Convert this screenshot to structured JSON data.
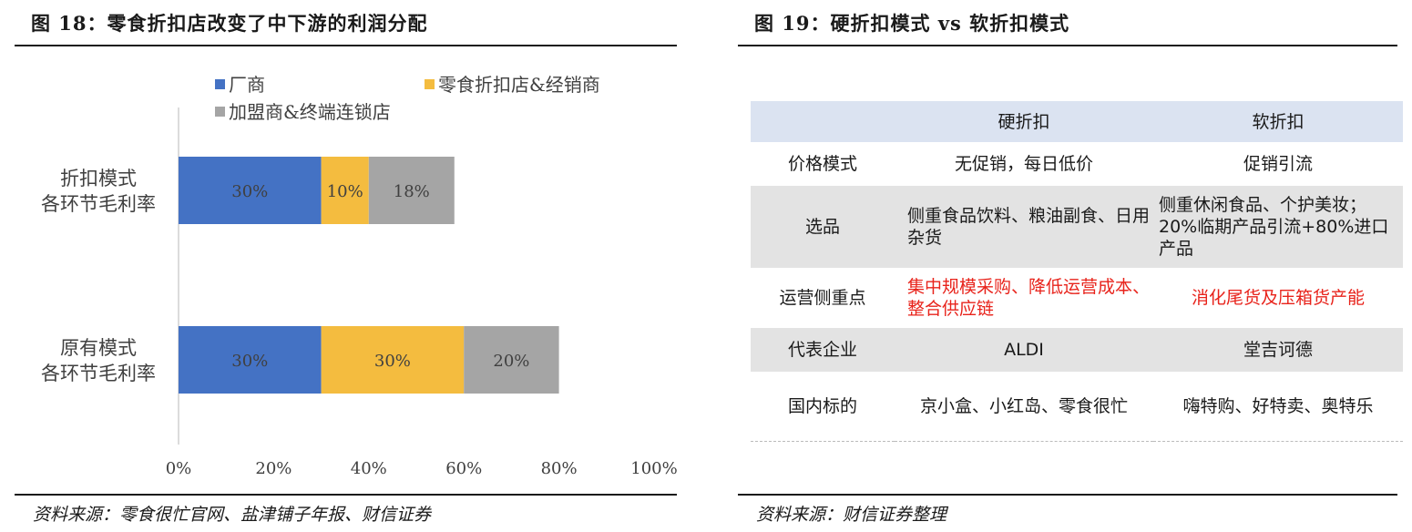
{
  "left_panel": {
    "title": "图 18：零食折扣店改变了中下游的利润分配",
    "source": "资料来源：零食很忙官网、盐津铺子年报、财信证券"
  },
  "right_panel": {
    "title": "图 19：硬折扣模式 vs 软折扣模式",
    "source": "资料来源：财信证券整理"
  },
  "chart_data": {
    "type": "bar",
    "orientation": "horizontal",
    "stacked": true,
    "categories": [
      "原有模式\n各环节毛利率",
      "折扣模式\n各环节毛利率"
    ],
    "series": [
      {
        "name": "厂商",
        "color": "#4472c4",
        "values": [
          30,
          30
        ],
        "labels": [
          "30%",
          "30%"
        ]
      },
      {
        "name": "零食折扣店&经销商",
        "color": "#f4bc3f",
        "values": [
          30,
          10
        ],
        "labels": [
          "30%",
          "10%"
        ]
      },
      {
        "name": "加盟商&终端连锁店",
        "color": "#a5a5a5",
        "values": [
          20,
          18
        ],
        "labels": [
          "20%",
          "18%"
        ]
      }
    ],
    "x_ticks": [
      "0%",
      "20%",
      "40%",
      "60%",
      "80%",
      "100%"
    ],
    "xlim": [
      0,
      100
    ],
    "grid": false,
    "legend_position": "top"
  },
  "table": {
    "header": [
      "",
      "硬折扣",
      "软折扣"
    ],
    "rows": [
      {
        "label": "价格模式",
        "hard": "无促销，每日低价",
        "soft": "促销引流",
        "shade": false,
        "red": false
      },
      {
        "label": "选品",
        "hard": "侧重食品饮料、粮油副食、日用杂货",
        "soft": "侧重休闲食品、个护美妆；20%临期产品引流+80%进口产品",
        "shade": true,
        "red": false
      },
      {
        "label": "运营侧重点",
        "hard": "集中规模采购、降低运营成本、整合供应链",
        "soft": "消化尾货及压箱货产能",
        "shade": false,
        "red": true
      },
      {
        "label": "代表企业",
        "hard": "ALDI",
        "soft": "堂吉诃德",
        "shade": true,
        "red": false
      },
      {
        "label": "国内标的",
        "hard": "京小盒、小红岛、零食很忙",
        "soft": "嗨特购、好特卖、奥特乐",
        "shade": false,
        "red": false
      }
    ]
  }
}
